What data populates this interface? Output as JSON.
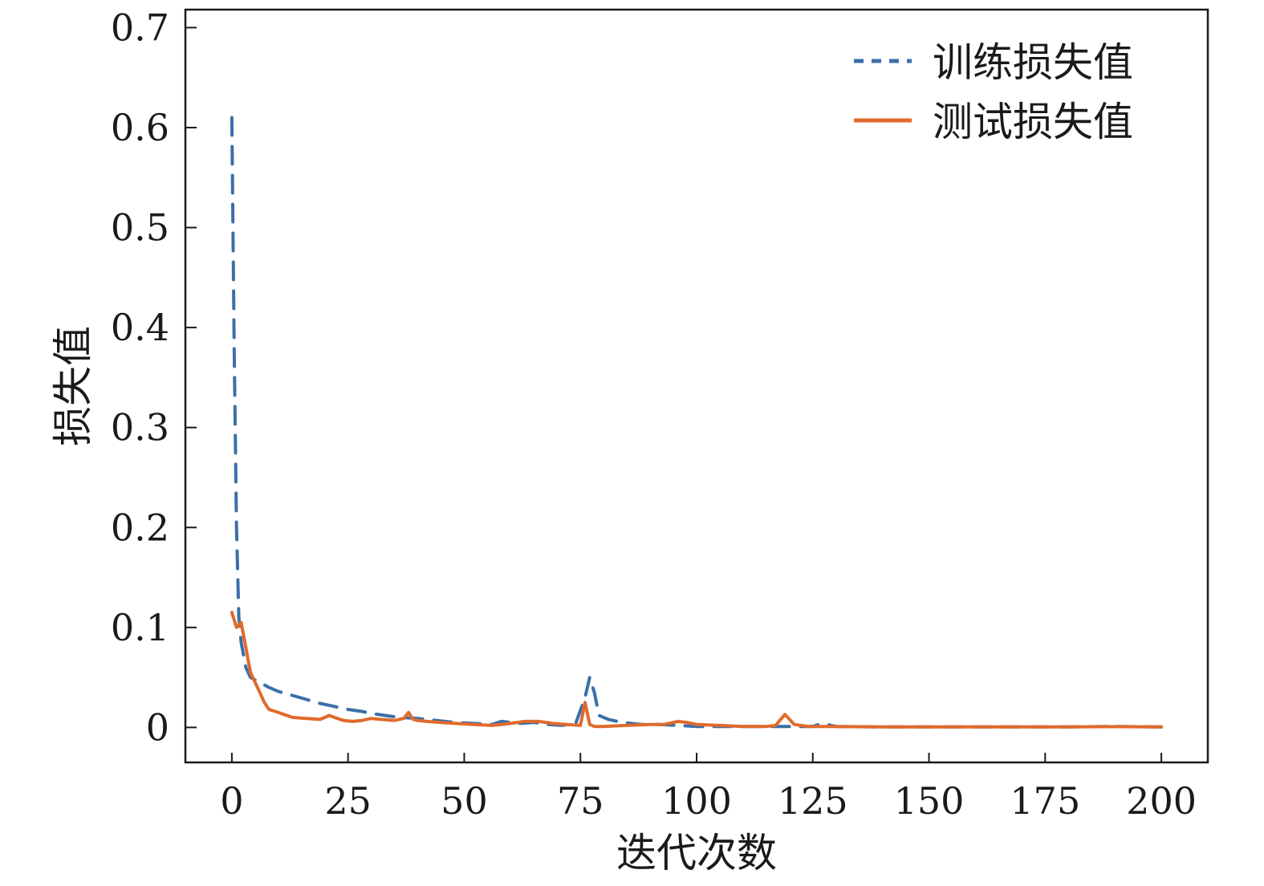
{
  "chart_data": {
    "type": "line",
    "xlabel": "迭代次数",
    "ylabel": "损失值",
    "xlim": [
      -10,
      210
    ],
    "ylim": [
      -0.035,
      0.718
    ],
    "xticks": [
      0,
      25,
      50,
      75,
      100,
      125,
      150,
      175,
      200
    ],
    "xtick_labels": [
      "0",
      "25",
      "50",
      "75",
      "100",
      "125",
      "150",
      "175",
      "200"
    ],
    "yticks": [
      0,
      0.1,
      0.2,
      0.3,
      0.4,
      0.5,
      0.6,
      0.7
    ],
    "ytick_labels": [
      "0",
      "0.1",
      "0.2",
      "0.3",
      "0.4",
      "0.5",
      "0.6",
      "0.7"
    ],
    "grid": false,
    "legend_position": "top-right",
    "series": [
      {
        "name": "训练损失值",
        "color": "#3b6fa8",
        "dash": "dashed",
        "x": [
          0,
          0.5,
          1,
          1.5,
          2,
          3,
          4,
          6,
          8,
          10,
          13,
          16,
          19,
          22,
          25,
          28,
          30,
          33,
          36,
          40,
          44,
          48,
          52,
          56,
          58,
          60,
          62,
          65,
          68,
          71,
          74,
          76,
          77,
          78,
          79,
          81,
          84,
          88,
          92,
          96,
          100,
          105,
          110,
          115,
          120,
          125,
          127,
          130,
          140,
          150,
          160,
          170,
          180,
          190,
          200
        ],
        "y": [
          0.61,
          0.38,
          0.2,
          0.11,
          0.085,
          0.06,
          0.05,
          0.045,
          0.04,
          0.036,
          0.032,
          0.028,
          0.024,
          0.021,
          0.018,
          0.016,
          0.014,
          0.012,
          0.01,
          0.009,
          0.007,
          0.005,
          0.004,
          0.003,
          0.006,
          0.005,
          0.004,
          0.005,
          0.003,
          0.002,
          0.004,
          0.03,
          0.05,
          0.035,
          0.012,
          0.008,
          0.005,
          0.003,
          0.003,
          0.002,
          0.001,
          0.001,
          0.001,
          0.001,
          0.001,
          0.001,
          0.004,
          0.001,
          0.0005,
          0.0005,
          0.0005,
          0.0005,
          0.0005,
          0.001,
          0.0005
        ]
      },
      {
        "name": "测试损失值",
        "color": "#e06a2c",
        "dash": "solid",
        "x": [
          0,
          1,
          2,
          3,
          4,
          5,
          6,
          7,
          8,
          10,
          13,
          16,
          19,
          21,
          22,
          24,
          26,
          28,
          30,
          32,
          35,
          37,
          38,
          39,
          40,
          42,
          45,
          48,
          52,
          56,
          60,
          63,
          66,
          69,
          72,
          75,
          76,
          77,
          78,
          80,
          85,
          90,
          93,
          96,
          98,
          100,
          105,
          110,
          115,
          117,
          119,
          121,
          124,
          130,
          140,
          150,
          160,
          170,
          180,
          190,
          200
        ],
        "y": [
          0.115,
          0.1,
          0.105,
          0.08,
          0.055,
          0.045,
          0.035,
          0.025,
          0.018,
          0.015,
          0.01,
          0.009,
          0.008,
          0.012,
          0.01,
          0.007,
          0.006,
          0.007,
          0.009,
          0.008,
          0.007,
          0.009,
          0.015,
          0.008,
          0.007,
          0.006,
          0.005,
          0.004,
          0.003,
          0.002,
          0.004,
          0.006,
          0.006,
          0.004,
          0.003,
          0.002,
          0.025,
          0.003,
          0.001,
          0.001,
          0.002,
          0.003,
          0.003,
          0.006,
          0.005,
          0.003,
          0.002,
          0.001,
          0.001,
          0.002,
          0.013,
          0.003,
          0.001,
          0.001,
          0.0005,
          0.0005,
          0.0005,
          0.0005,
          0.0005,
          0.0008,
          0.0005
        ]
      }
    ]
  }
}
